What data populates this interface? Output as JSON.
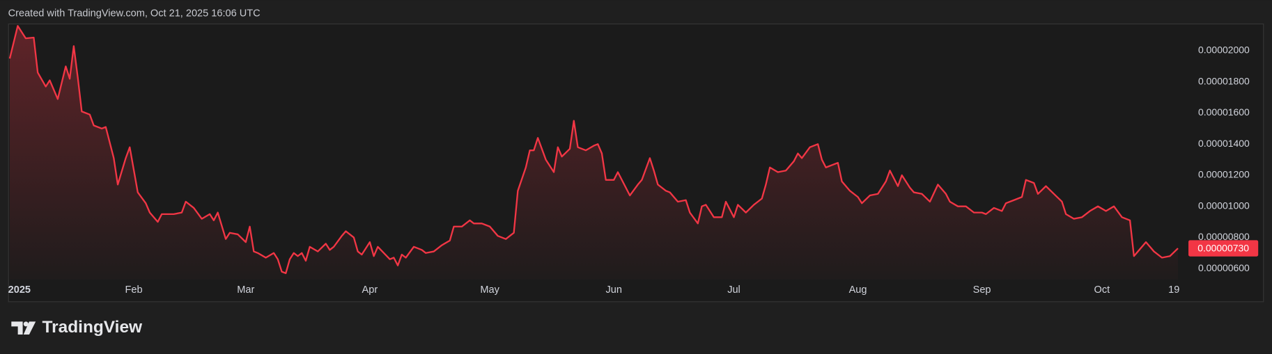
{
  "header": {
    "text": "Created with TradingView.com, Oct 21, 2025 16:06 UTC"
  },
  "logo": {
    "text": "TradingView"
  },
  "chart_data": {
    "type": "line",
    "color": "#f23645",
    "grid": false,
    "last_value_label": "0.00000730",
    "xlim": [
      "2025-01-01",
      "2025-10-21"
    ],
    "xticks": [
      {
        "value": "2025-01-01",
        "label": "2025"
      },
      {
        "value": "2025-02-01",
        "label": "Feb"
      },
      {
        "value": "2025-03-01",
        "label": "Mar"
      },
      {
        "value": "2025-04-01",
        "label": "Apr"
      },
      {
        "value": "2025-05-01",
        "label": "May"
      },
      {
        "value": "2025-06-01",
        "label": "Jun"
      },
      {
        "value": "2025-07-01",
        "label": "Jul"
      },
      {
        "value": "2025-08-01",
        "label": "Aug"
      },
      {
        "value": "2025-09-01",
        "label": "Sep"
      },
      {
        "value": "2025-10-01",
        "label": "Oct"
      },
      {
        "value": "2025-10-19",
        "label": "19"
      }
    ],
    "ylim": [
      5.3e-06,
      2.17e-05
    ],
    "yticks": [
      {
        "value": 6e-06,
        "label": "0.00000600"
      },
      {
        "value": 8e-06,
        "label": "0.00000800"
      },
      {
        "value": 1e-05,
        "label": "0.00001000"
      },
      {
        "value": 1.2e-05,
        "label": "0.00001200"
      },
      {
        "value": 1.4e-05,
        "label": "0.00001400"
      },
      {
        "value": 1.6e-05,
        "label": "0.00001600"
      },
      {
        "value": 1.8e-05,
        "label": "0.00001800"
      },
      {
        "value": 2e-05,
        "label": "0.00002000"
      }
    ],
    "x": [
      "2025-01-01",
      "2025-01-03",
      "2025-01-05",
      "2025-01-07",
      "2025-01-08",
      "2025-01-10",
      "2025-01-11",
      "2025-01-13",
      "2025-01-15",
      "2025-01-16",
      "2025-01-17",
      "2025-01-18",
      "2025-01-19",
      "2025-01-21",
      "2025-01-22",
      "2025-01-24",
      "2025-01-25",
      "2025-01-27",
      "2025-01-28",
      "2025-01-30",
      "2025-01-31",
      "2025-02-02",
      "2025-02-04",
      "2025-02-05",
      "2025-02-07",
      "2025-02-08",
      "2025-02-11",
      "2025-02-13",
      "2025-02-14",
      "2025-02-16",
      "2025-02-18",
      "2025-02-20",
      "2025-02-21",
      "2025-02-22",
      "2025-02-24",
      "2025-02-25",
      "2025-02-27",
      "2025-03-01",
      "2025-03-02",
      "2025-03-03",
      "2025-03-04",
      "2025-03-06",
      "2025-03-08",
      "2025-03-09",
      "2025-03-10",
      "2025-03-11",
      "2025-03-12",
      "2025-03-13",
      "2025-03-14",
      "2025-03-15",
      "2025-03-16",
      "2025-03-17",
      "2025-03-19",
      "2025-03-21",
      "2025-03-22",
      "2025-03-23",
      "2025-03-25",
      "2025-03-26",
      "2025-03-28",
      "2025-03-29",
      "2025-03-30",
      "2025-04-01",
      "2025-04-02",
      "2025-04-03",
      "2025-04-06",
      "2025-04-07",
      "2025-04-08",
      "2025-04-09",
      "2025-04-10",
      "2025-04-12",
      "2025-04-14",
      "2025-04-15",
      "2025-04-17",
      "2025-04-19",
      "2025-04-21",
      "2025-04-22",
      "2025-04-24",
      "2025-04-26",
      "2025-04-27",
      "2025-04-29",
      "2025-05-01",
      "2025-05-03",
      "2025-05-05",
      "2025-05-07",
      "2025-05-08",
      "2025-05-10",
      "2025-05-11",
      "2025-05-12",
      "2025-05-13",
      "2025-05-15",
      "2025-05-17",
      "2025-05-18",
      "2025-05-19",
      "2025-05-21",
      "2025-05-22",
      "2025-05-23",
      "2025-05-25",
      "2025-05-27",
      "2025-05-28",
      "2025-05-29",
      "2025-05-30",
      "2025-06-01",
      "2025-06-02",
      "2025-06-05",
      "2025-06-07",
      "2025-06-08",
      "2025-06-10",
      "2025-06-11",
      "2025-06-12",
      "2025-06-14",
      "2025-06-15",
      "2025-06-17",
      "2025-06-19",
      "2025-06-20",
      "2025-06-22",
      "2025-06-23",
      "2025-06-24",
      "2025-06-26",
      "2025-06-28",
      "2025-06-29",
      "2025-07-01",
      "2025-07-02",
      "2025-07-04",
      "2025-07-06",
      "2025-07-08",
      "2025-07-09",
      "2025-07-10",
      "2025-07-12",
      "2025-07-14",
      "2025-07-16",
      "2025-07-17",
      "2025-07-18",
      "2025-07-20",
      "2025-07-22",
      "2025-07-23",
      "2025-07-24",
      "2025-07-27",
      "2025-07-28",
      "2025-07-30",
      "2025-08-01",
      "2025-08-02",
      "2025-08-04",
      "2025-08-06",
      "2025-08-08",
      "2025-08-09",
      "2025-08-11",
      "2025-08-12",
      "2025-08-14",
      "2025-08-15",
      "2025-08-17",
      "2025-08-19",
      "2025-08-21",
      "2025-08-23",
      "2025-08-24",
      "2025-08-26",
      "2025-08-28",
      "2025-08-30",
      "2025-09-01",
      "2025-09-02",
      "2025-09-04",
      "2025-09-06",
      "2025-09-07",
      "2025-09-09",
      "2025-09-11",
      "2025-09-12",
      "2025-09-14",
      "2025-09-15",
      "2025-09-17",
      "2025-09-19",
      "2025-09-21",
      "2025-09-22",
      "2025-09-24",
      "2025-09-26",
      "2025-09-28",
      "2025-09-30",
      "2025-10-02",
      "2025-10-04",
      "2025-10-06",
      "2025-10-08",
      "2025-10-09",
      "2025-10-10",
      "2025-10-12",
      "2025-10-14",
      "2025-10-16",
      "2025-10-18",
      "2025-10-20"
    ],
    "values": [
      1.95e-05,
      2.16e-05,
      2.08e-05,
      2.085e-05,
      1.86e-05,
      1.77e-05,
      1.81e-05,
      1.69e-05,
      1.9e-05,
      1.82e-05,
      2.03e-05,
      1.83e-05,
      1.61e-05,
      1.59e-05,
      1.52e-05,
      1.5e-05,
      1.51e-05,
      1.31e-05,
      1.14e-05,
      1.31e-05,
      1.38e-05,
      1.09e-05,
      1.02e-05,
      9.6e-06,
      9e-06,
      9.5e-06,
      9.5e-06,
      9.6e-06,
      1.03e-05,
      9.9e-06,
      9.2e-06,
      9.5e-06,
      9.1e-06,
      9.6e-06,
      7.9e-06,
      8.3e-06,
      8.2e-06,
      7.7e-06,
      8.7e-06,
      7.1e-06,
      7e-06,
      6.7e-06,
      7e-06,
      6.6e-06,
      5.8e-06,
      5.7e-06,
      6.6e-06,
      7e-06,
      6.8e-06,
      7e-06,
      6.5e-06,
      7.4e-06,
      7.1e-06,
      7.6e-06,
      7.2e-06,
      7.4e-06,
      8.1e-06,
      8.4e-06,
      8e-06,
      7.1e-06,
      6.9e-06,
      7.7e-06,
      6.8e-06,
      7.4e-06,
      6.6e-06,
      6.7e-06,
      6.2e-06,
      6.9e-06,
      6.7e-06,
      7.4e-06,
      7.2e-06,
      7e-06,
      7.1e-06,
      7.5e-06,
      7.8e-06,
      8.7e-06,
      8.7e-06,
      9.1e-06,
      8.9e-06,
      8.9e-06,
      8.7e-06,
      8.1e-06,
      7.9e-06,
      8.3e-06,
      1.1e-05,
      1.25e-05,
      1.36e-05,
      1.36e-05,
      1.44e-05,
      1.3e-05,
      1.22e-05,
      1.38e-05,
      1.32e-05,
      1.37e-05,
      1.55e-05,
      1.38e-05,
      1.36e-05,
      1.39e-05,
      1.4e-05,
      1.34e-05,
      1.17e-05,
      1.17e-05,
      1.22e-05,
      1.07e-05,
      1.14e-05,
      1.17e-05,
      1.31e-05,
      1.23e-05,
      1.14e-05,
      1.1e-05,
      1.09e-05,
      1.03e-05,
      1.04e-05,
      9.6e-06,
      8.9e-06,
      1e-05,
      1.01e-05,
      9.3e-06,
      9.3e-06,
      1.03e-05,
      9.3e-06,
      1.01e-05,
      9.6e-06,
      1.01e-05,
      1.05e-05,
      1.14e-05,
      1.25e-05,
      1.22e-05,
      1.23e-05,
      1.29e-05,
      1.34e-05,
      1.31e-05,
      1.38e-05,
      1.4e-05,
      1.3e-05,
      1.25e-05,
      1.28e-05,
      1.16e-05,
      1.1e-05,
      1.06e-05,
      1.02e-05,
      1.07e-05,
      1.08e-05,
      1.16e-05,
      1.23e-05,
      1.13e-05,
      1.2e-05,
      1.12e-05,
      1.09e-05,
      1.08e-05,
      1.03e-05,
      1.14e-05,
      1.08e-05,
      1.03e-05,
      1e-05,
      1e-05,
      9.6e-06,
      9.6e-06,
      9.5e-06,
      9.9e-06,
      9.7e-06,
      1.02e-05,
      1.04e-05,
      1.06e-05,
      1.17e-05,
      1.15e-05,
      1.08e-05,
      1.13e-05,
      1.08e-05,
      1.03e-05,
      9.5e-06,
      9.2e-06,
      9.3e-06,
      9.7e-06,
      1e-05,
      9.7e-06,
      1e-05,
      9.3e-06,
      9.1e-06,
      6.8e-06,
      7.1e-06,
      7.7e-06,
      7.1e-06,
      6.7e-06,
      6.8e-06,
      7.3e-06
    ]
  }
}
